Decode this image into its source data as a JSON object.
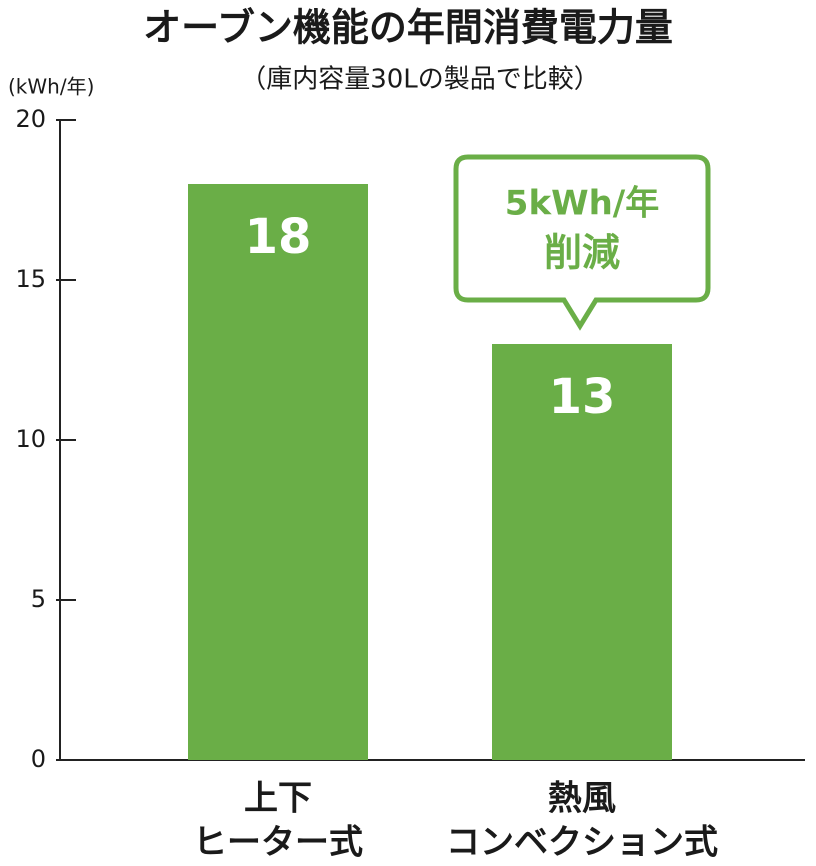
{
  "chart_data": {
    "type": "bar",
    "title": "オーブン機能の年間消費電力量",
    "subtitle": "（庫内容量30Lの製品で比較）",
    "y_label": "(kWh/年)",
    "categories": [
      [
        "上下",
        "ヒーター式"
      ],
      [
        "熱風",
        "コンベクション式"
      ]
    ],
    "values": [
      18,
      13
    ],
    "color": "#6aae47",
    "ylim": [
      0,
      20
    ],
    "yticks": [
      0,
      5,
      10,
      15,
      20
    ],
    "annotation": [
      "5kWh/年",
      "削減"
    ]
  }
}
